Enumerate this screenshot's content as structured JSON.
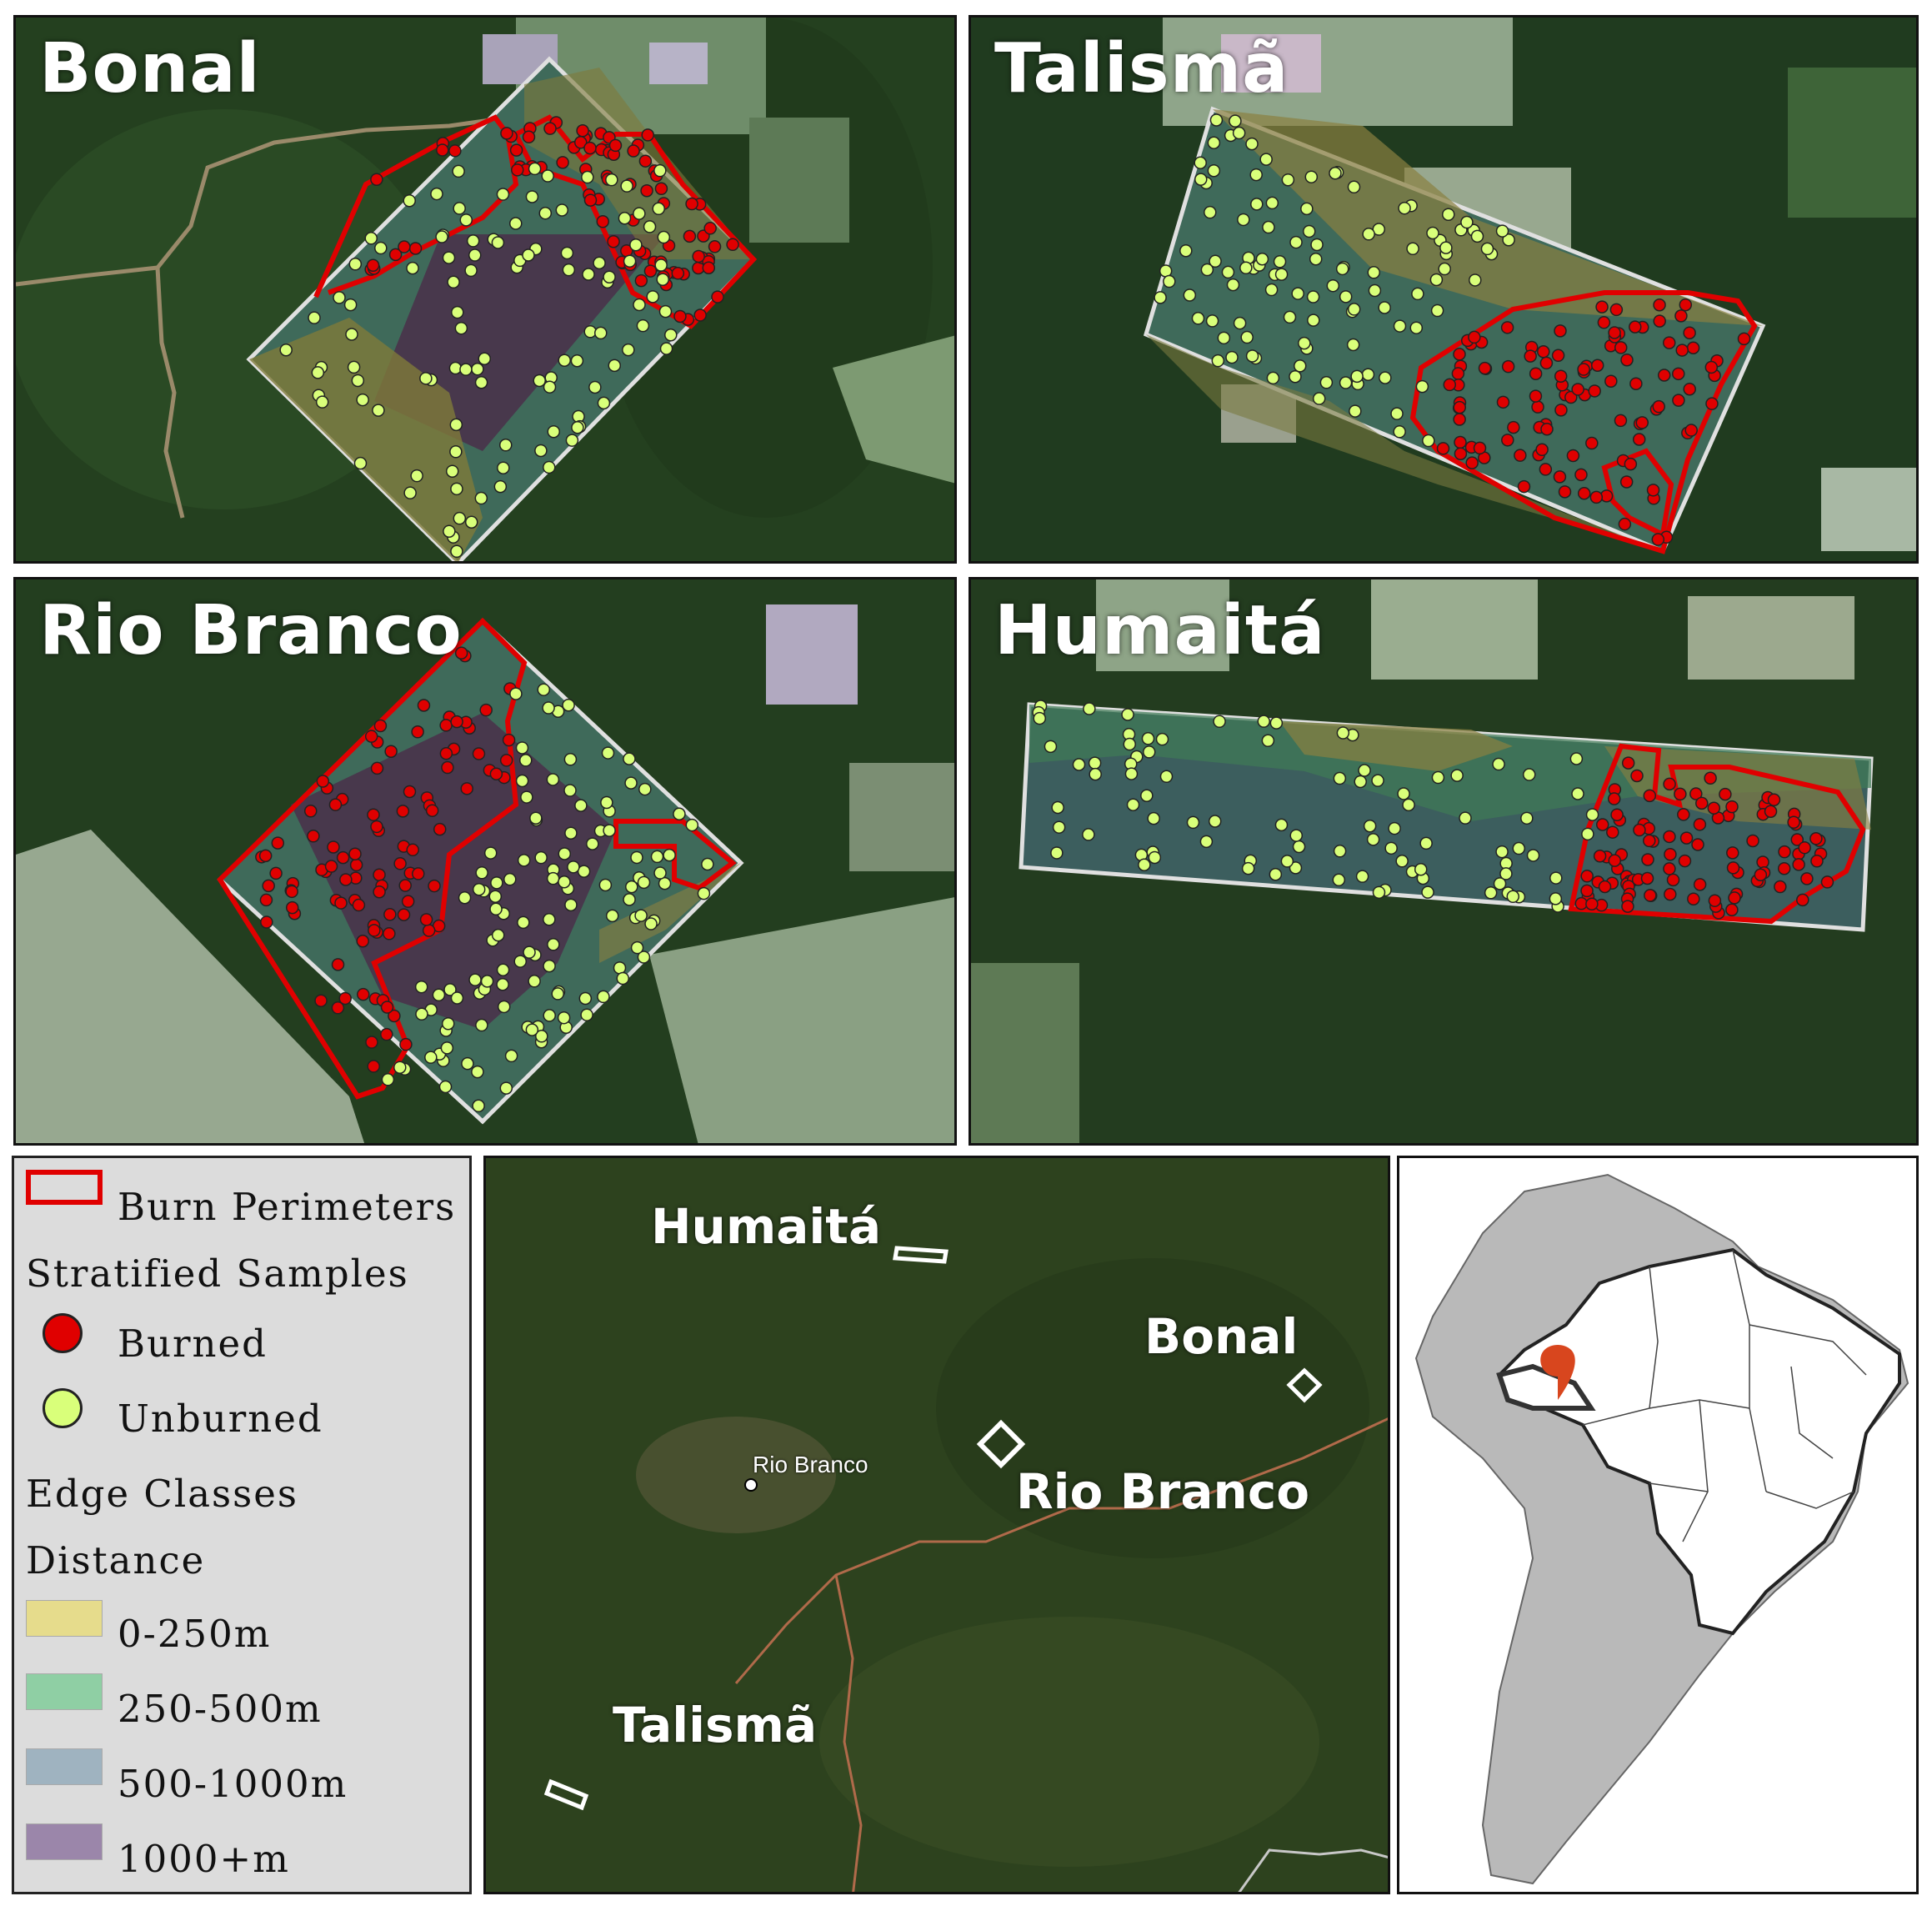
{
  "panels": {
    "bonal": {
      "title": "Bonal"
    },
    "talisma": {
      "title": "Talismã"
    },
    "rio_branco": {
      "title": "Rio Branco"
    },
    "humaita": {
      "title": "Humaitá"
    }
  },
  "legend": {
    "burn_perimeters": "Burn Perimeters",
    "stratified_samples": "Stratified Samples",
    "burned": "Burned",
    "unburned": "Unburned",
    "edge_classes": "Edge Classes",
    "distance": "Distance",
    "classes": [
      {
        "label": "0-250m",
        "color": "#e6dc8c"
      },
      {
        "label": "250-500m",
        "color": "#8fcfa4"
      },
      {
        "label": "500-1000m",
        "color": "#9fb3c0"
      },
      {
        "label": "1000+m",
        "color": "#9b86aa"
      }
    ],
    "burned_color": "#e00000",
    "unburned_color": "#d9ff7a",
    "perimeter_color": "#e00000"
  },
  "overview": {
    "labels": [
      "Humaitá",
      "Bonal",
      "Rio Branco",
      "Talismã"
    ],
    "city": "Rio Branco"
  }
}
